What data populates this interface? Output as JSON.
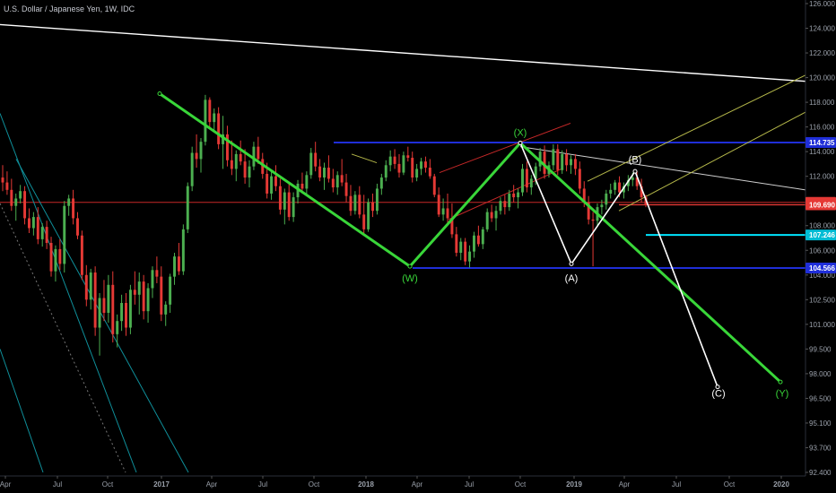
{
  "header": {
    "symbol_title": "U.S. Dollar / Japanese Yen, 1W, IDC"
  },
  "colors": {
    "background": "#000000",
    "candle_up": "#4caf50",
    "candle_down": "#e53935",
    "wave_green": "#39d639",
    "wave_white": "#ffffff",
    "blue_line": "#1f2ed8",
    "cyan_line": "#00e5ff",
    "red_line": "#c62828",
    "channel_yellow": "#b5b84a",
    "teal_channel": "#0f8f9a",
    "axis_text": "#9aa0aa",
    "price_label_text": "#ffffff"
  },
  "chart_data": {
    "type": "candlestick",
    "title": "U.S. Dollar / Japanese Yen, 1W, IDC",
    "ylim": [
      92.4,
      126.0
    ],
    "y_ticks": [
      126.0,
      124.0,
      122.0,
      120.0,
      118.0,
      116.0,
      114.0,
      112.0,
      110.0,
      108.0,
      106.0,
      104.0,
      102.5,
      101.0,
      99.5,
      98.0,
      96.5,
      95.1,
      93.7,
      92.4
    ],
    "y_tick_labels": [
      "126.000",
      "124.000",
      "122.000",
      "120.000",
      "118.000",
      "116.000",
      "114.000",
      "112.000",
      "110.000",
      "108.000",
      "106.000",
      "104.000",
      "102.500",
      "101.000",
      "99.500",
      "98.000",
      "96.500",
      "95.100",
      "93.700",
      "92.400"
    ],
    "x_tick_labels": [
      "Apr",
      "Jul",
      "Oct",
      "2017",
      "Apr",
      "Jul",
      "Oct",
      "2018",
      "Apr",
      "Jul",
      "Oct",
      "2019",
      "Apr",
      "Jul",
      "Oct",
      "2020"
    ],
    "price_labels": [
      {
        "text": "114.735",
        "value": 114.735,
        "color": "#1f2ed8"
      },
      {
        "text": "109.891",
        "value": 109.891,
        "color": "#e53935"
      },
      {
        "text": "109.690",
        "value": 109.69,
        "color": "#e53935"
      },
      {
        "text": "107.246",
        "value": 107.246,
        "color": "#00bcd4"
      },
      {
        "text": "104.566",
        "value": 104.566,
        "color": "#1f2ed8"
      }
    ],
    "candles_x_range": [
      0,
      720
    ],
    "ohlc": [
      [
        111.9,
        112.9,
        110.8,
        111.5
      ],
      [
        111.5,
        112.4,
        110.5,
        110.9
      ],
      [
        110.9,
        111.8,
        109.2,
        109.6
      ],
      [
        109.6,
        110.6,
        108.4,
        110.2
      ],
      [
        110.2,
        111.3,
        109.8,
        110.8
      ],
      [
        110.8,
        111.2,
        108.1,
        108.6
      ],
      [
        108.6,
        109.4,
        107.4,
        107.8
      ],
      [
        107.8,
        109.1,
        107.2,
        108.7
      ],
      [
        108.7,
        109.5,
        106.5,
        106.9
      ],
      [
        106.9,
        108.2,
        106.3,
        107.9
      ],
      [
        107.9,
        108.4,
        106.1,
        106.6
      ],
      [
        106.6,
        107.1,
        103.9,
        104.3
      ],
      [
        104.3,
        106.4,
        103.6,
        106.1
      ],
      [
        106.1,
        106.9,
        104.4,
        104.9
      ],
      [
        104.9,
        110.0,
        104.2,
        109.6
      ],
      [
        109.6,
        110.5,
        108.8,
        110.2
      ],
      [
        110.2,
        110.9,
        108.1,
        108.6
      ],
      [
        108.6,
        109.1,
        106.9,
        107.2
      ],
      [
        107.2,
        107.6,
        103.7,
        104.0
      ],
      [
        104.0,
        104.8,
        102.1,
        102.5
      ],
      [
        102.5,
        104.5,
        101.9,
        104.2
      ],
      [
        104.2,
        104.7,
        100.3,
        100.8
      ],
      [
        100.8,
        102.9,
        99.1,
        102.6
      ],
      [
        102.6,
        103.7,
        101.2,
        101.7
      ],
      [
        101.7,
        104.0,
        101.1,
        103.4
      ],
      [
        103.4,
        104.3,
        99.9,
        100.4
      ],
      [
        100.4,
        101.6,
        99.6,
        101.2
      ],
      [
        101.2,
        102.8,
        100.6,
        102.3
      ],
      [
        102.3,
        102.9,
        100.3,
        100.8
      ],
      [
        100.8,
        103.4,
        100.4,
        103.1
      ],
      [
        103.1,
        104.3,
        102.2,
        102.8
      ],
      [
        102.8,
        104.2,
        101.6,
        103.6
      ],
      [
        103.6,
        104.0,
        101.3,
        101.8
      ],
      [
        101.8,
        103.5,
        101.1,
        103.2
      ],
      [
        103.2,
        104.7,
        102.6,
        104.4
      ],
      [
        104.4,
        105.5,
        103.5,
        103.9
      ],
      [
        103.9,
        104.7,
        101.2,
        101.6
      ],
      [
        101.6,
        102.4,
        100.9,
        102.2
      ],
      [
        102.2,
        104.1,
        101.7,
        103.9
      ],
      [
        103.9,
        105.8,
        103.4,
        105.5
      ],
      [
        105.5,
        106.6,
        104.0,
        104.3
      ],
      [
        104.3,
        108.1,
        104.0,
        107.7
      ],
      [
        107.7,
        111.5,
        107.4,
        111.2
      ],
      [
        111.2,
        114.4,
        110.8,
        113.9
      ],
      [
        113.9,
        115.4,
        112.7,
        113.4
      ],
      [
        113.4,
        115.1,
        112.3,
        114.8
      ],
      [
        114.8,
        118.6,
        114.5,
        118.2
      ],
      [
        118.2,
        118.4,
        116.0,
        116.4
      ],
      [
        116.4,
        117.5,
        115.6,
        117.1
      ],
      [
        117.1,
        117.6,
        114.2,
        114.6
      ],
      [
        114.6,
        116.9,
        112.6,
        115.4
      ],
      [
        115.4,
        116.1,
        112.8,
        113.3
      ],
      [
        113.3,
        114.9,
        112.1,
        112.6
      ],
      [
        112.6,
        114.1,
        111.6,
        113.8
      ],
      [
        113.8,
        114.9,
        112.9,
        113.2
      ],
      [
        113.2,
        114.2,
        111.4,
        111.9
      ],
      [
        111.9,
        113.3,
        111.1,
        112.8
      ],
      [
        112.8,
        114.8,
        112.5,
        114.4
      ],
      [
        114.4,
        115.2,
        113.0,
        113.4
      ],
      [
        113.4,
        113.9,
        111.8,
        112.2
      ],
      [
        112.2,
        113.1,
        110.2,
        110.6
      ],
      [
        110.6,
        112.5,
        110.1,
        112.0
      ],
      [
        112.0,
        112.9,
        110.8,
        111.2
      ],
      [
        111.2,
        111.8,
        108.9,
        109.3
      ],
      [
        109.3,
        111.0,
        108.1,
        110.7
      ],
      [
        110.7,
        111.5,
        108.4,
        108.7
      ],
      [
        108.7,
        110.7,
        108.3,
        110.3
      ],
      [
        110.3,
        111.7,
        109.8,
        111.4
      ],
      [
        111.4,
        112.3,
        110.6,
        111.0
      ],
      [
        111.0,
        112.4,
        110.4,
        112.1
      ],
      [
        112.1,
        114.3,
        111.8,
        113.9
      ],
      [
        113.9,
        114.8,
        112.4,
        112.8
      ],
      [
        112.8,
        113.4,
        111.6,
        111.9
      ],
      [
        111.9,
        113.1,
        110.9,
        112.7
      ],
      [
        112.7,
        113.7,
        111.5,
        111.8
      ],
      [
        111.8,
        112.6,
        110.7,
        111.1
      ],
      [
        111.1,
        112.4,
        110.5,
        112.1
      ],
      [
        112.1,
        113.4,
        111.2,
        111.5
      ],
      [
        111.5,
        112.2,
        109.9,
        110.4
      ],
      [
        110.4,
        111.3,
        108.8,
        109.2
      ],
      [
        109.2,
        110.8,
        108.9,
        110.5
      ],
      [
        110.5,
        111.2,
        108.6,
        108.9
      ],
      [
        108.9,
        110.5,
        107.3,
        107.7
      ],
      [
        107.7,
        110.2,
        107.5,
        109.9
      ],
      [
        109.9,
        110.6,
        108.7,
        109.2
      ],
      [
        109.2,
        111.4,
        108.9,
        111.0
      ],
      [
        111.0,
        112.2,
        110.5,
        111.9
      ],
      [
        111.9,
        113.3,
        111.6,
        112.9
      ],
      [
        112.9,
        114.1,
        112.4,
        113.6
      ],
      [
        113.6,
        114.2,
        112.6,
        113.0
      ],
      [
        113.0,
        113.8,
        111.9,
        112.3
      ],
      [
        112.3,
        114.0,
        112.1,
        113.7
      ],
      [
        113.7,
        114.4,
        113.2,
        113.5
      ],
      [
        113.5,
        114.0,
        111.5,
        111.9
      ],
      [
        111.9,
        113.0,
        111.6,
        112.6
      ],
      [
        112.6,
        113.5,
        112.1,
        113.2
      ],
      [
        113.2,
        113.6,
        112.3,
        112.7
      ],
      [
        112.7,
        113.4,
        111.8,
        112.0
      ],
      [
        112.0,
        112.2,
        110.3,
        110.5
      ],
      [
        110.5,
        111.1,
        108.7,
        108.9
      ],
      [
        108.9,
        110.2,
        108.4,
        109.4
      ],
      [
        109.4,
        110.6,
        108.2,
        108.6
      ],
      [
        108.6,
        109.8,
        107.0,
        107.3
      ],
      [
        107.3,
        107.9,
        105.5,
        105.8
      ],
      [
        105.8,
        107.0,
        105.2,
        106.7
      ],
      [
        106.7,
        107.0,
        104.8,
        105.1
      ],
      [
        105.1,
        106.4,
        104.6,
        105.9
      ],
      [
        105.9,
        107.5,
        105.4,
        107.2
      ],
      [
        107.2,
        108.0,
        106.3,
        106.5
      ],
      [
        106.5,
        107.9,
        106.1,
        107.7
      ],
      [
        107.7,
        109.4,
        107.5,
        109.1
      ],
      [
        109.1,
        109.7,
        108.3,
        108.6
      ],
      [
        108.6,
        109.6,
        107.6,
        109.2
      ],
      [
        109.2,
        110.3,
        108.9,
        110.0
      ],
      [
        110.0,
        110.5,
        108.9,
        109.5
      ],
      [
        109.5,
        110.9,
        109.2,
        110.6
      ],
      [
        110.6,
        111.3,
        109.9,
        110.3
      ],
      [
        110.3,
        111.0,
        109.4,
        110.7
      ],
      [
        110.7,
        113.0,
        110.4,
        112.6
      ],
      [
        112.6,
        113.2,
        110.7,
        111.1
      ],
      [
        111.1,
        112.1,
        110.5,
        111.8
      ],
      [
        111.8,
        113.1,
        111.3,
        112.8
      ],
      [
        112.8,
        114.3,
        112.4,
        114.0
      ],
      [
        114.0,
        114.5,
        111.8,
        112.2
      ],
      [
        112.2,
        113.2,
        111.9,
        112.9
      ],
      [
        112.9,
        114.6,
        112.5,
        114.2
      ],
      [
        114.2,
        114.6,
        112.1,
        112.5
      ],
      [
        112.5,
        114.1,
        112.2,
        113.8
      ],
      [
        113.8,
        114.2,
        112.4,
        112.9
      ],
      [
        112.9,
        113.7,
        112.2,
        113.4
      ],
      [
        113.4,
        113.8,
        112.1,
        112.6
      ],
      [
        112.6,
        113.2,
        110.6,
        111.0
      ],
      [
        111.0,
        111.6,
        109.5,
        109.9
      ],
      [
        109.9,
        110.4,
        108.1,
        108.5
      ],
      [
        108.5,
        109.1,
        104.7,
        108.4
      ],
      [
        108.4,
        109.8,
        107.9,
        109.5
      ],
      [
        109.5,
        110.1,
        108.9,
        109.7
      ],
      [
        109.7,
        110.9,
        109.3,
        110.6
      ],
      [
        110.6,
        111.4,
        110.2,
        110.9
      ],
      [
        110.9,
        111.7,
        110.5,
        111.5
      ],
      [
        111.5,
        112.0,
        110.3,
        110.7
      ],
      [
        110.7,
        111.5,
        110.2,
        111.2
      ],
      [
        111.2,
        112.1,
        110.8,
        111.7
      ],
      [
        111.7,
        112.3,
        111.2,
        111.9
      ],
      [
        111.9,
        112.4,
        110.9,
        111.2
      ],
      [
        111.2,
        111.8,
        109.9,
        110.3
      ],
      [
        110.3,
        110.5,
        109.5,
        109.7
      ]
    ],
    "lines": [
      {
        "name": "long-white-trendline",
        "color": "#ffffff",
        "width": 1.4,
        "points": [
          [
            0,
            124.3
          ],
          [
            898,
            119.7
          ]
        ]
      },
      {
        "name": "gray-b-trendline",
        "color": "#d0d0d0",
        "width": 1,
        "points": [
          [
            580,
            114.4
          ],
          [
            898,
            110.9
          ]
        ]
      },
      {
        "name": "resistance-blue",
        "color": "#1f2ed8",
        "width": 2,
        "points": [
          [
            372,
            114.735
          ],
          [
            898,
            114.735
          ]
        ]
      },
      {
        "name": "support-blue",
        "color": "#1f2ed8",
        "width": 2,
        "points": [
          [
            460,
            104.566
          ],
          [
            898,
            104.566
          ]
        ]
      },
      {
        "name": "red-level-1",
        "color": "#c62828",
        "width": 1,
        "points": [
          [
            0,
            109.891
          ],
          [
            898,
            109.891
          ]
        ]
      },
      {
        "name": "red-level-2",
        "color": "#e53935",
        "width": 1.4,
        "points": [
          [
            690,
            109.69
          ],
          [
            898,
            109.69
          ]
        ]
      },
      {
        "name": "cyan-level",
        "color": "#00e5ff",
        "width": 2,
        "points": [
          [
            720,
            107.246
          ],
          [
            898,
            107.246
          ]
        ]
      },
      {
        "name": "x-channel-upper",
        "color": "#c62828",
        "width": 1,
        "points": [
          [
            490,
            112.3
          ],
          [
            636,
            116.3
          ]
        ]
      },
      {
        "name": "x-channel-lower",
        "color": "#c62828",
        "width": 1,
        "points": [
          [
            500,
            108.5
          ],
          [
            626,
            112.6
          ]
        ]
      },
      {
        "name": "yellow-channel-upper",
        "color": "#b5b84a",
        "width": 1,
        "points": [
          [
            655,
            111.6
          ],
          [
            898,
            120.2
          ]
        ]
      },
      {
        "name": "yellow-channel-lower",
        "color": "#b5b84a",
        "width": 1,
        "points": [
          [
            690,
            109.2
          ],
          [
            898,
            117.2
          ]
        ]
      },
      {
        "name": "olive-short-line",
        "color": "#b5b84a",
        "width": 1,
        "points": [
          [
            392,
            113.8
          ],
          [
            420,
            113.1
          ]
        ]
      },
      {
        "name": "teal-channel-1",
        "color": "#0f8f9a",
        "width": 1,
        "points": [
          [
            0,
            117.1
          ],
          [
            152,
            92.4
          ]
        ]
      },
      {
        "name": "teal-channel-2",
        "color": "#0f8f9a",
        "width": 1,
        "points": [
          [
            0,
            99.5
          ],
          [
            48,
            92.4
          ]
        ]
      },
      {
        "name": "teal-channel-3",
        "color": "#0f8f9a",
        "width": 1,
        "points": [
          [
            18,
            113.4
          ],
          [
            210,
            92.4
          ]
        ]
      },
      {
        "name": "gray-dotted-channel",
        "color": "#777777",
        "width": 1,
        "dash": "2,3",
        "points": [
          [
            0,
            109.8
          ],
          [
            140,
            92.4
          ]
        ]
      }
    ],
    "waves": [
      {
        "name": "green-wxy-wave",
        "color": "#39d639",
        "width": 3,
        "points": [
          [
            178,
            118.7
          ],
          [
            457,
            104.7
          ],
          [
            580,
            114.7
          ],
          [
            870,
            97.5
          ]
        ]
      },
      {
        "name": "white-abc-wave",
        "color": "#ffffff",
        "width": 1.6,
        "points": [
          [
            580,
            114.7
          ],
          [
            637,
            104.9
          ],
          [
            708,
            112.4
          ],
          [
            800,
            97.2
          ]
        ]
      }
    ],
    "wave_labels": [
      {
        "text": "(W)",
        "x": 457,
        "value": 103.6,
        "color": "#39d639"
      },
      {
        "text": "(X)",
        "x": 580,
        "value": 115.3,
        "color": "#39d639"
      },
      {
        "text": "(Y)",
        "x": 872,
        "value": 96.6,
        "color": "#39d639"
      },
      {
        "text": "(A)",
        "x": 637,
        "value": 103.6,
        "color": "#ffffff"
      },
      {
        "text": "(B)",
        "x": 708,
        "value": 113.1,
        "color": "#ffffff"
      },
      {
        "text": "(C)",
        "x": 801,
        "value": 96.6,
        "color": "#ffffff"
      }
    ]
  }
}
